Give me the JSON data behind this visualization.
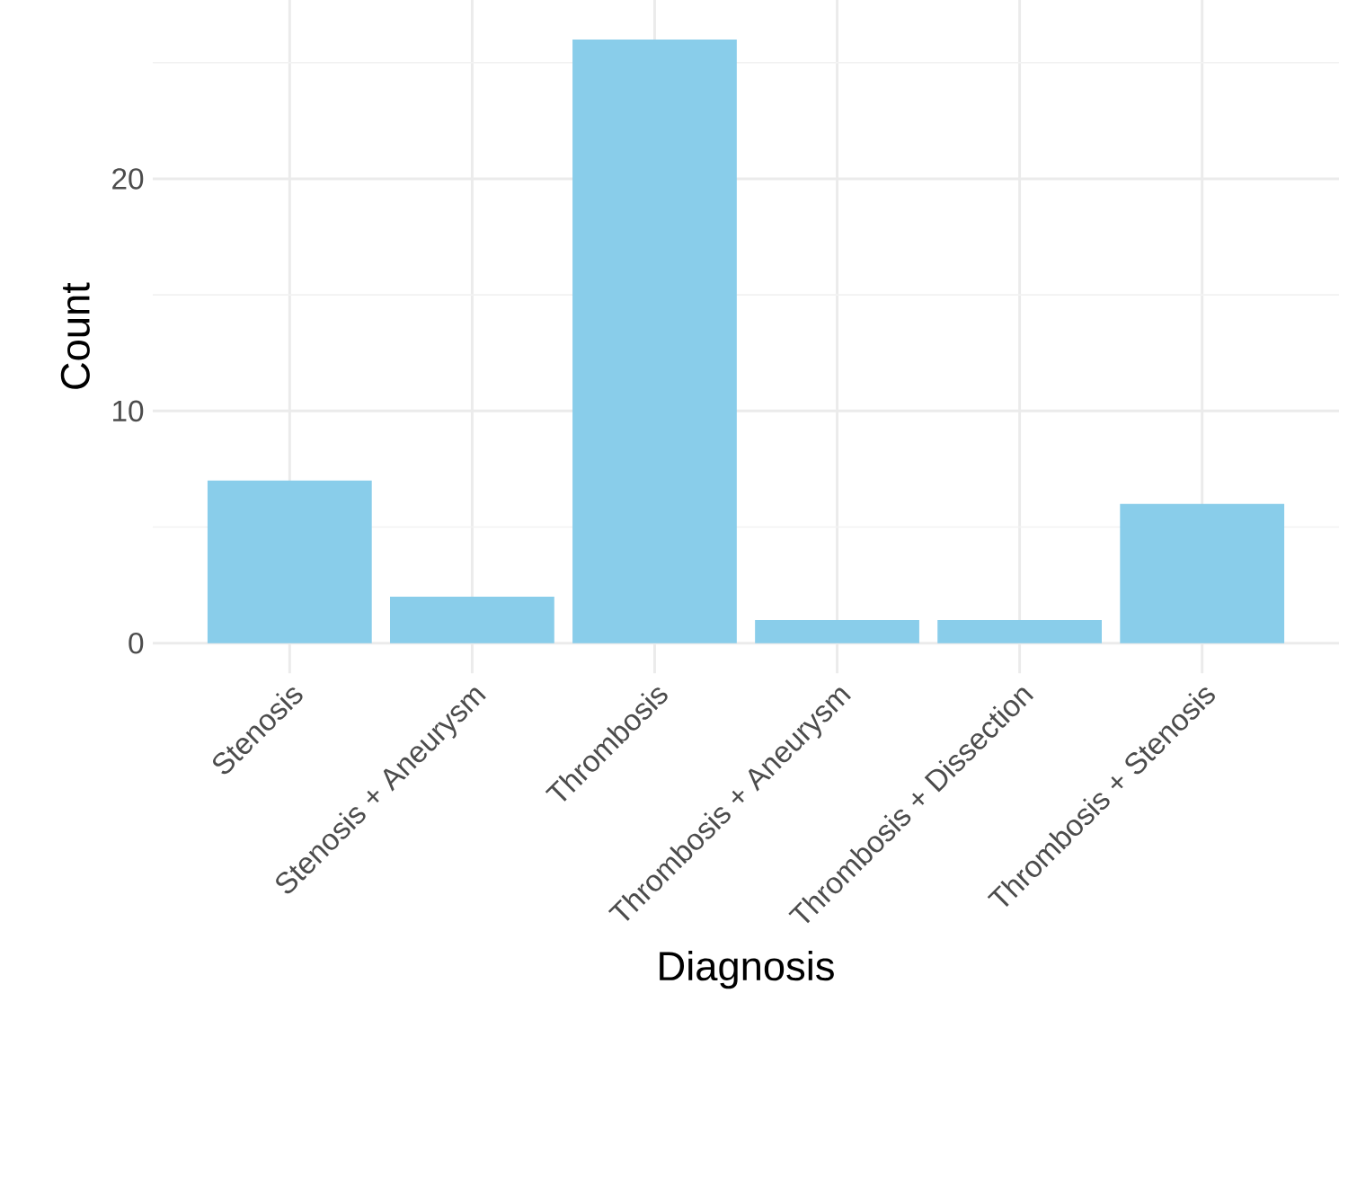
{
  "chart_data": {
    "type": "bar",
    "xlabel": "Diagnosis",
    "ylabel": "Count",
    "categories": [
      "Stenosis",
      "Stenosis + Aneurysm",
      "Thrombosis",
      "Thrombosis + Aneurysm",
      "Thrombosis + Dissection",
      "Thrombosis + Stenosis"
    ],
    "values": [
      7,
      2,
      26,
      1,
      1,
      6
    ],
    "color": "#89cdea",
    "ylim": [
      -1.3,
      27.7
    ],
    "yticks": [
      0,
      10,
      20
    ],
    "grid": true
  }
}
